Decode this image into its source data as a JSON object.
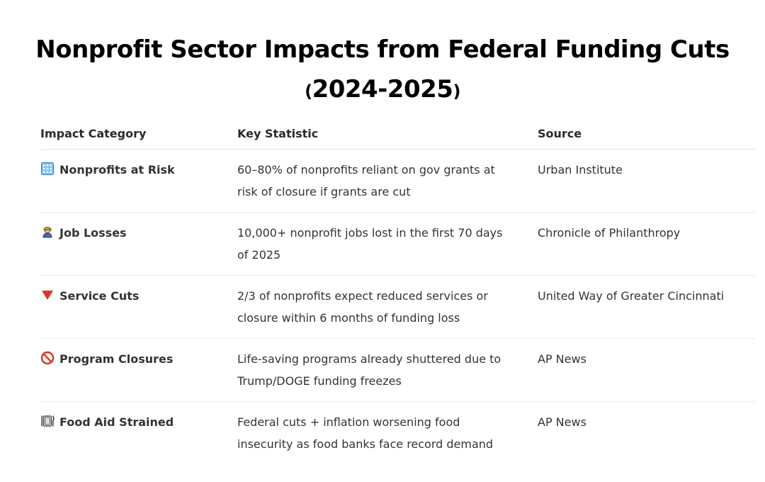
{
  "title": {
    "line1": "Nonprofit Sector Impacts from Federal Funding Cuts",
    "line2_open": "(",
    "line2_years": "2024-2025",
    "line2_close": ")"
  },
  "table": {
    "headers": [
      "Impact Category",
      "Key Statistic",
      "Source"
    ],
    "rows": [
      {
        "icon": "office-building-icon",
        "category": "Nonprofits at Risk",
        "statistic": "60–80% of nonprofits reliant on gov grants at risk of closure if grants are cut",
        "source": "Urban Institute"
      },
      {
        "icon": "worker-person-icon",
        "category": "Job Losses",
        "statistic": "10,000+ nonprofit jobs lost in the first 70 days of 2025",
        "source": "Chronicle of Philanthropy"
      },
      {
        "icon": "red-down-triangle-icon",
        "category": "Service Cuts",
        "statistic": "2/3 of nonprofits expect reduced services or closure within 6 months of funding loss",
        "source": "United Way of Greater Cincinnati"
      },
      {
        "icon": "prohibited-icon",
        "category": "Program Closures",
        "statistic": "Life-saving programs already shuttered due to Trump/DOGE funding freezes",
        "source": "AP News"
      },
      {
        "icon": "plate-fork-knife-icon",
        "category": "Food Aid Strained",
        "statistic": "Federal cuts + inflation worsening food insecurity as food banks face record demand",
        "source": "AP News"
      }
    ]
  }
}
